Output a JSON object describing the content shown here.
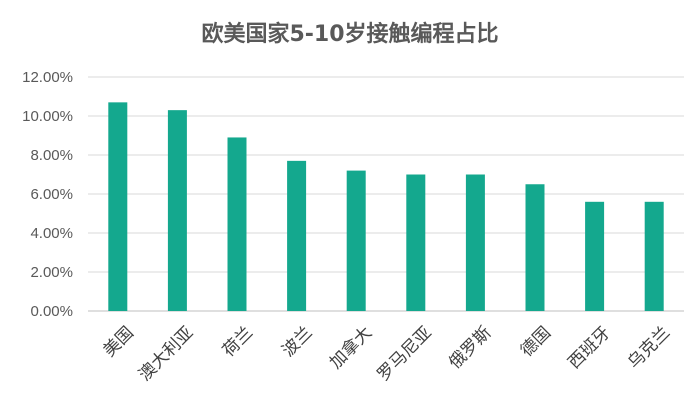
{
  "chart_data": {
    "type": "bar",
    "title": "欧美国家5-10岁接触编程占比",
    "categories": [
      "美国",
      "澳大利亚",
      "荷兰",
      "波兰",
      "加拿大",
      "罗马尼亚",
      "俄罗斯",
      "德国",
      "西班牙",
      "乌克兰"
    ],
    "values": [
      10.7,
      10.3,
      8.9,
      7.7,
      7.2,
      7.0,
      7.0,
      6.5,
      5.6,
      5.6
    ],
    "ylim": [
      0,
      12
    ],
    "yticks": [
      "0.00%",
      "2.00%",
      "4.00%",
      "6.00%",
      "8.00%",
      "10.00%",
      "12.00%"
    ],
    "grid": true,
    "bar_color": "#14a88e"
  }
}
